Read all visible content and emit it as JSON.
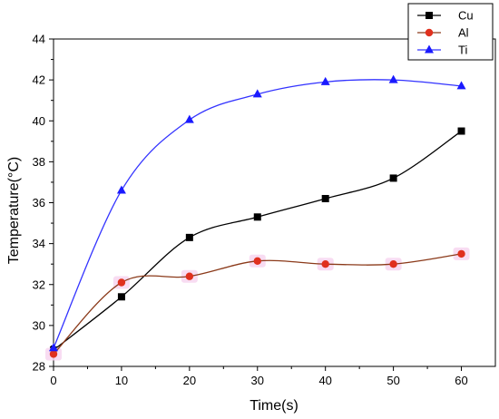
{
  "chart_data": {
    "type": "line",
    "title": "",
    "xlabel": "Time(s)",
    "ylabel": "Temperature(°C)",
    "x": [
      0,
      10,
      20,
      30,
      40,
      50,
      60
    ],
    "xlim": [
      0,
      65
    ],
    "ylim": [
      28,
      44
    ],
    "xticks": [
      0,
      10,
      20,
      30,
      40,
      50,
      60
    ],
    "yticks": [
      28,
      30,
      32,
      34,
      36,
      38,
      40,
      42,
      44
    ],
    "grid": false,
    "legend_position": "top-right",
    "series": [
      {
        "name": "Cu",
        "values": [
          28.8,
          31.4,
          34.3,
          35.3,
          36.2,
          37.2,
          39.5
        ],
        "color": "#000000",
        "marker": "square",
        "line_color": "#000000"
      },
      {
        "name": "Al",
        "values": [
          28.6,
          32.1,
          32.4,
          33.15,
          33.0,
          33.0,
          33.5
        ],
        "color": "#e0301e",
        "marker": "circle",
        "line_color": "#8b3a1a",
        "highlight": "#f7d6f0"
      },
      {
        "name": "Ti",
        "values": [
          28.9,
          36.6,
          40.05,
          41.3,
          41.9,
          42.0,
          41.7
        ],
        "color": "#1a1aff",
        "marker": "triangle",
        "line_color": "#3333ff"
      }
    ]
  }
}
